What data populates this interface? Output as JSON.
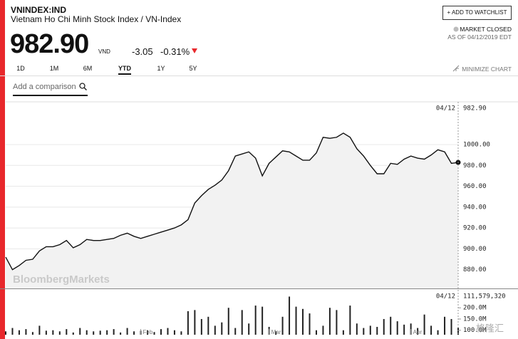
{
  "header": {
    "symbol": "VNINDEX:IND",
    "name": "Vietnam Ho Chi Minh Stock Index / VN-Index",
    "price": "982.90",
    "currency": "VND",
    "change": "-3.05",
    "change_pct": "-0.31%",
    "watchlist_button": "+ ADD TO WATCHLIST",
    "status": "MARKET CLOSED",
    "as_of": "AS OF 04/12/2019 EDT"
  },
  "controls": {
    "tabs": [
      "1D",
      "1M",
      "6M",
      "YTD",
      "1Y",
      "5Y"
    ],
    "active_tab_index": 3,
    "minimize": "MINIMIZE CHART",
    "comparison_placeholder": "Add a comparison"
  },
  "chart_data": [
    {
      "type": "line",
      "color": "#111111",
      "fill": "#f2f2f2",
      "grid": true,
      "watermark": "BloombergMarkets",
      "last_date": "04/12",
      "last_label": "982.90",
      "values": [
        892,
        880,
        884,
        889,
        890,
        898,
        902,
        902,
        904,
        908,
        901,
        904,
        909,
        908,
        908,
        909,
        910,
        913,
        915,
        912,
        910,
        912,
        914,
        916,
        918,
        920,
        923,
        928,
        944,
        951,
        957,
        961,
        966,
        975,
        989,
        991,
        993,
        987,
        970,
        982,
        988,
        994,
        993,
        989,
        985,
        985,
        992,
        1007,
        1006,
        1007,
        1011,
        1007,
        996,
        989,
        980,
        972,
        972,
        982,
        981,
        986,
        989,
        987,
        986,
        990,
        995,
        993,
        982,
        982.9
      ],
      "ylim": [
        862,
        1041
      ],
      "yticks": [
        {
          "value": 880,
          "label": "880.00"
        },
        {
          "value": 900,
          "label": "900.00"
        },
        {
          "value": 920,
          "label": "920.00"
        },
        {
          "value": 940,
          "label": "940.00"
        },
        {
          "value": 960,
          "label": "960.00"
        },
        {
          "value": 980,
          "label": "980.00"
        },
        {
          "value": 1000,
          "label": "1000.00"
        }
      ]
    },
    {
      "type": "bar",
      "color": "#222222",
      "last_date": "04/12",
      "last_label": "111,579,320",
      "categories": [
        null,
        null,
        null,
        null,
        null,
        null,
        null,
        null,
        null,
        null,
        null,
        null,
        null,
        null,
        null,
        null,
        null,
        null,
        null,
        null,
        "Feb",
        null,
        null,
        null,
        null,
        null,
        null,
        null,
        null,
        null,
        null,
        null,
        null,
        null,
        null,
        null,
        null,
        null,
        null,
        "Mar",
        null,
        null,
        null,
        null,
        null,
        null,
        null,
        null,
        null,
        null,
        null,
        null,
        null,
        null,
        null,
        null,
        null,
        null,
        null,
        null,
        "Apr",
        null,
        null,
        null,
        null,
        null,
        null,
        null
      ],
      "values": [
        95000000,
        110000000,
        100000000,
        105000000,
        92000000,
        120000000,
        98000000,
        100000000,
        95000000,
        105000000,
        90000000,
        110000000,
        100000000,
        95000000,
        98000000,
        100000000,
        105000000,
        90000000,
        110000000,
        95000000,
        98000000,
        100000000,
        92000000,
        105000000,
        110000000,
        100000000,
        95000000,
        185000000,
        190000000,
        150000000,
        160000000,
        120000000,
        135000000,
        200000000,
        110000000,
        190000000,
        130000000,
        210000000,
        205000000,
        115000000,
        95000000,
        160000000,
        250000000,
        205000000,
        195000000,
        175000000,
        100000000,
        120000000,
        200000000,
        190000000,
        100000000,
        210000000,
        130000000,
        110000000,
        120000000,
        115000000,
        150000000,
        160000000,
        140000000,
        125000000,
        130000000,
        110000000,
        170000000,
        120000000,
        100000000,
        160000000,
        150000000,
        111579320
      ],
      "ylim": [
        80000000,
        280000000
      ],
      "yticks": [
        {
          "value": 100000000,
          "label": "100.0M"
        },
        {
          "value": 150000000,
          "label": "150.0M"
        },
        {
          "value": 200000000,
          "label": "200.0M"
        }
      ]
    }
  ],
  "source_watermark": "格隆汇"
}
